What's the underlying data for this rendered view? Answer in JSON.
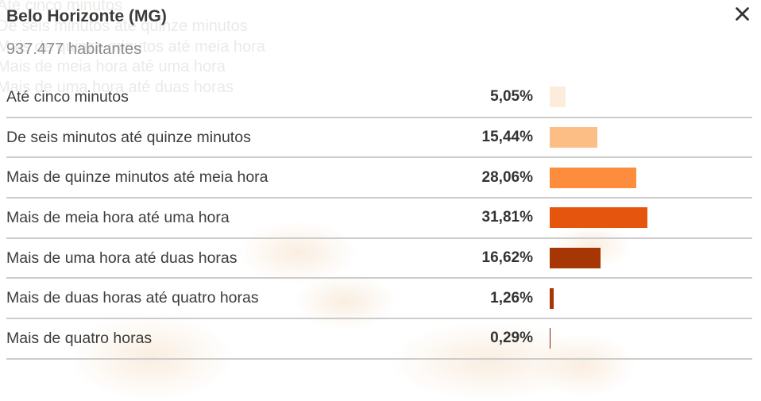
{
  "header": {
    "title": "Belo Horizonte (MG)",
    "subtitle": "937.477 habitantes"
  },
  "close": {
    "label": "close"
  },
  "chart_data": {
    "type": "bar",
    "orientation": "horizontal",
    "title": "Belo Horizonte (MG)",
    "subtitle": "937.477 habitantes",
    "categories": [
      "Até cinco minutos",
      "De seis minutos até quinze minutos",
      "Mais de quinze minutos até meia hora",
      "Mais de meia hora até uma hora",
      "Mais de uma hora até duas horas",
      "Mais de duas horas até quatro horas",
      "Mais de quatro horas"
    ],
    "values": [
      5.05,
      15.44,
      28.06,
      31.81,
      16.62,
      1.26,
      0.29
    ],
    "value_labels": [
      "5,05%",
      "15,44%",
      "28,06%",
      "31,81%",
      "16,62%",
      "1,26%",
      "0,29%"
    ],
    "bar_colors": [
      "#fdecdc",
      "#fdbe85",
      "#fd8d3c",
      "#e6550d",
      "#a63603",
      "#a63603",
      "#7f2704"
    ],
    "unit": "%",
    "xlim": [
      0,
      35
    ],
    "grid": false,
    "legend": false
  },
  "background": {
    "ghost_lines": [
      "Até cinco minutos",
      "De seis minutos até quinze minutos",
      "Mais de quinze minutos até meia hora",
      "Mais de meia hora até uma hora",
      "Mais de uma hora até duas horas"
    ]
  },
  "colors": {
    "divider": "#cccccc",
    "title_text": "#3b3b3b",
    "subtitle_text": "#8c8c8c",
    "label_text": "#3d3d3d",
    "value_text": "#333333",
    "close_icon": "#333333",
    "ghost_text": "#eceae7",
    "map_tint": "#f8e8d6"
  }
}
